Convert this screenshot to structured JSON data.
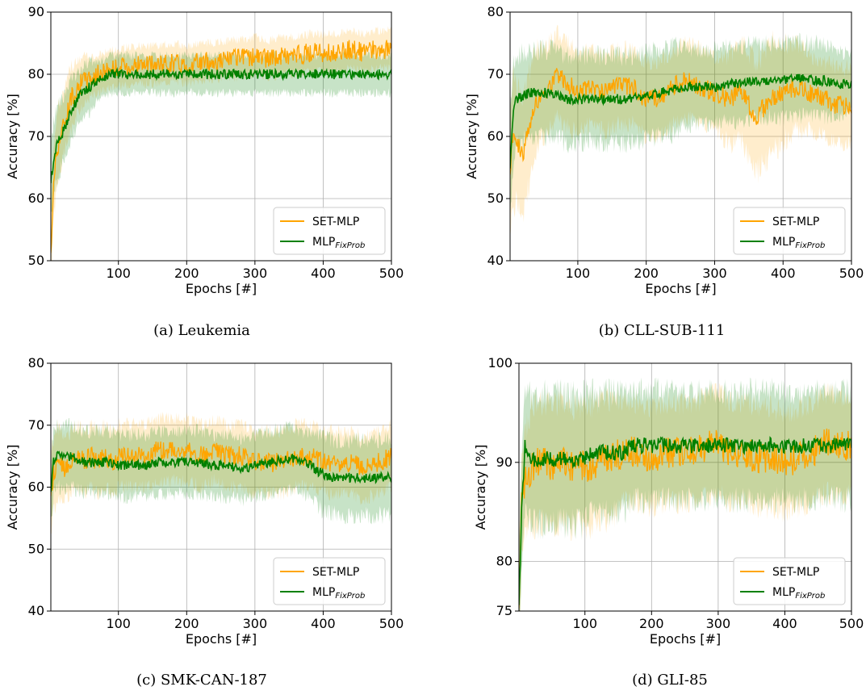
{
  "chart_data": [
    {
      "type": "line",
      "caption": "(a) Leukemia",
      "xlabel": "Epochs [#]",
      "ylabel": "Accuracy [%]",
      "xlim": [
        1,
        500
      ],
      "ylim": [
        50,
        90
      ],
      "xticks": [
        100,
        200,
        300,
        400,
        500
      ],
      "yticks": [
        50,
        60,
        70,
        80,
        90
      ],
      "grid": true,
      "legend_position": "bottom-right",
      "series": [
        {
          "name": "SET-MLP",
          "color": "#ffa500",
          "x": [
            1,
            5,
            10,
            20,
            30,
            40,
            50,
            60,
            70,
            80,
            90,
            100,
            120,
            140,
            160,
            180,
            200,
            220,
            240,
            260,
            280,
            300,
            320,
            340,
            360,
            380,
            400,
            420,
            440,
            460,
            480,
            500
          ],
          "y": [
            50,
            63,
            68,
            72,
            76,
            78,
            79,
            79.5,
            80,
            80.5,
            81,
            81,
            81.5,
            81.5,
            81.5,
            82,
            81.5,
            82,
            82,
            82.5,
            82.5,
            83,
            82.5,
            83,
            83,
            83.5,
            83.5,
            83.5,
            84,
            83.5,
            84,
            84
          ],
          "band": [
            6,
            6,
            6,
            5,
            5,
            4,
            4,
            3,
            3,
            3,
            3,
            3,
            3,
            3,
            3,
            3,
            3,
            3,
            3,
            3,
            3,
            3,
            3,
            3,
            3,
            3,
            3,
            3,
            3,
            3,
            3,
            3
          ]
        },
        {
          "name": "MLP_FixProb",
          "color": "#008000",
          "x": [
            1,
            5,
            10,
            20,
            30,
            40,
            50,
            60,
            70,
            80,
            90,
            100,
            120,
            140,
            160,
            180,
            200,
            220,
            240,
            260,
            280,
            300,
            320,
            340,
            360,
            380,
            400,
            420,
            440,
            460,
            480,
            500
          ],
          "y": [
            63,
            66,
            69,
            71,
            74,
            76,
            77.5,
            78,
            79,
            79.5,
            80,
            80,
            80,
            80,
            80,
            80,
            80,
            80,
            80,
            80,
            80,
            80,
            80,
            80,
            80,
            80,
            80,
            80,
            80,
            80,
            80,
            80
          ],
          "band": [
            6,
            6,
            6,
            5,
            5,
            4,
            4,
            4,
            3,
            3,
            3,
            3,
            3,
            3,
            3,
            3,
            3,
            3,
            3,
            3,
            3,
            3,
            3,
            3,
            3,
            3,
            3,
            3,
            3,
            3,
            3,
            3
          ]
        }
      ]
    },
    {
      "type": "line",
      "caption": "(b) CLL-SUB-111",
      "xlabel": "Epochs [#]",
      "ylabel": "Accuracy [%]",
      "xlim": [
        1,
        500
      ],
      "ylim": [
        40,
        80
      ],
      "xticks": [
        100,
        200,
        300,
        400,
        500
      ],
      "yticks": [
        40,
        50,
        60,
        70,
        80
      ],
      "grid": true,
      "legend_position": "bottom-right",
      "series": [
        {
          "name": "SET-MLP",
          "color": "#ffa500",
          "x": [
            1,
            5,
            10,
            20,
            30,
            40,
            50,
            60,
            70,
            80,
            90,
            100,
            120,
            140,
            160,
            180,
            200,
            220,
            240,
            260,
            280,
            300,
            320,
            340,
            360,
            380,
            400,
            420,
            440,
            460,
            480,
            500
          ],
          "y": [
            55,
            60,
            59,
            57,
            62,
            66,
            67,
            68,
            70,
            69,
            68,
            67,
            68,
            67,
            68,
            68,
            66,
            66,
            68,
            69,
            68,
            67,
            66,
            67,
            63,
            66,
            67,
            68,
            67,
            66,
            65,
            65
          ],
          "band": [
            10,
            10,
            10,
            10,
            9,
            8,
            7,
            7,
            7,
            7,
            7,
            6,
            6,
            6,
            6,
            6,
            6,
            6,
            6,
            6,
            6,
            6,
            7,
            8,
            9,
            9,
            8,
            7,
            6,
            6,
            6,
            6
          ]
        },
        {
          "name": "MLP_FixProb",
          "color": "#008000",
          "x": [
            1,
            5,
            10,
            20,
            30,
            40,
            50,
            60,
            70,
            80,
            90,
            100,
            120,
            140,
            160,
            180,
            200,
            220,
            240,
            260,
            280,
            300,
            320,
            340,
            360,
            380,
            400,
            420,
            440,
            460,
            480,
            500
          ],
          "y": [
            55,
            63,
            66,
            66.5,
            67,
            67,
            67,
            67,
            67,
            66,
            66,
            66,
            66,
            66,
            66,
            66,
            66.5,
            67,
            67.5,
            68,
            68,
            68,
            68.5,
            68.5,
            69,
            69,
            69,
            69.5,
            69,
            69,
            68.5,
            68.5
          ],
          "band": [
            8,
            8,
            7,
            7,
            7,
            7,
            7,
            7,
            7,
            7,
            7,
            7,
            7,
            7,
            7,
            7,
            7,
            7,
            7,
            6,
            6,
            6,
            6,
            6,
            6,
            6,
            6,
            6,
            6,
            6,
            5,
            5
          ]
        }
      ]
    },
    {
      "type": "line",
      "caption": "(c) SMK-CAN-187",
      "xlabel": "Epochs [#]",
      "ylabel": "Accuracy [%]",
      "xlim": [
        1,
        500
      ],
      "ylim": [
        40,
        80
      ],
      "xticks": [
        100,
        200,
        300,
        400,
        500
      ],
      "yticks": [
        40,
        50,
        60,
        70,
        80
      ],
      "grid": true,
      "legend_position": "bottom-right",
      "series": [
        {
          "name": "SET-MLP",
          "color": "#ffa500",
          "x": [
            1,
            5,
            10,
            20,
            30,
            40,
            50,
            60,
            70,
            80,
            90,
            100,
            120,
            140,
            160,
            180,
            200,
            220,
            240,
            260,
            280,
            300,
            320,
            340,
            360,
            380,
            400,
            420,
            440,
            460,
            480,
            500
          ],
          "y": [
            59,
            62,
            64,
            63,
            64,
            65,
            64,
            65,
            64,
            65,
            64,
            65,
            65,
            65,
            66,
            66,
            66,
            65,
            66,
            65,
            65,
            64,
            64,
            64,
            65,
            65,
            64,
            64,
            64,
            63,
            64,
            65
          ],
          "band": [
            6,
            6,
            6,
            5,
            5,
            5,
            5,
            5,
            5,
            5,
            5,
            5,
            5,
            5,
            5,
            5,
            5,
            5,
            5,
            5,
            5,
            5,
            5,
            5,
            5,
            5,
            5,
            5,
            5,
            5,
            5,
            5
          ]
        },
        {
          "name": "MLP_FixProb",
          "color": "#008000",
          "x": [
            1,
            5,
            10,
            20,
            30,
            40,
            50,
            60,
            70,
            80,
            90,
            100,
            120,
            140,
            160,
            180,
            200,
            220,
            240,
            260,
            280,
            300,
            320,
            340,
            360,
            380,
            400,
            420,
            440,
            460,
            480,
            500
          ],
          "y": [
            59,
            64,
            65,
            65,
            65,
            64.5,
            64,
            64,
            64,
            64,
            64,
            63.5,
            63.5,
            63.5,
            64,
            64,
            64,
            64,
            63.5,
            63.5,
            63,
            63.5,
            64,
            64.5,
            64.5,
            63.5,
            62,
            61.5,
            61.5,
            61.5,
            61.5,
            61.5
          ],
          "band": [
            5,
            5,
            5,
            5,
            5,
            5,
            5,
            5,
            5,
            5,
            5,
            5,
            5,
            5,
            5,
            5,
            5,
            5,
            5,
            5,
            5,
            5,
            5,
            5,
            5,
            5,
            6,
            6,
            6,
            6,
            6,
            6
          ]
        }
      ]
    },
    {
      "type": "line",
      "caption": "(d) GLI-85",
      "xlabel": "Epochs [#]",
      "ylabel": "Accuracy [%]",
      "xlim": [
        1,
        500
      ],
      "ylim": [
        75,
        100
      ],
      "xticks": [
        100,
        200,
        300,
        400,
        500
      ],
      "yticks": [
        75,
        80,
        90,
        100
      ],
      "grid": true,
      "legend_position": "bottom-right",
      "series": [
        {
          "name": "SET-MLP",
          "color": "#ffa500",
          "x": [
            1,
            5,
            10,
            20,
            30,
            40,
            50,
            60,
            70,
            80,
            90,
            100,
            120,
            140,
            160,
            180,
            200,
            220,
            240,
            260,
            280,
            300,
            320,
            340,
            360,
            380,
            400,
            420,
            440,
            460,
            480,
            500
          ],
          "y": [
            75,
            86,
            88,
            89.5,
            90,
            90,
            89.5,
            90,
            90,
            89.5,
            90,
            89.5,
            90,
            90.5,
            91,
            91,
            90.5,
            91,
            91,
            91,
            91.5,
            92,
            91,
            91,
            90.5,
            90.5,
            90,
            90.5,
            91,
            92,
            91.5,
            92
          ],
          "band": [
            5,
            5,
            5,
            6,
            6,
            6,
            6,
            6,
            6,
            6,
            6,
            6,
            6,
            6,
            5,
            5,
            5,
            5,
            5,
            5,
            5,
            5,
            5,
            5,
            5,
            5,
            5,
            5,
            5,
            5,
            5,
            5
          ]
        },
        {
          "name": "MLP_FixProb",
          "color": "#008000",
          "x": [
            1,
            5,
            10,
            20,
            30,
            40,
            50,
            60,
            70,
            80,
            90,
            100,
            110,
            120,
            140,
            160,
            170,
            200,
            220,
            240,
            260,
            280,
            300,
            320,
            340,
            360,
            380,
            400,
            420,
            440,
            460,
            480,
            500
          ],
          "y": [
            75,
            85,
            91.5,
            90.3,
            90.3,
            90.3,
            90.3,
            90.3,
            90.3,
            90.3,
            90.3,
            90.3,
            91,
            91,
            91,
            91,
            91.7,
            91.7,
            91.7,
            91.7,
            91.7,
            91.7,
            91.7,
            91.7,
            91.7,
            91.7,
            91.7,
            91.7,
            91.7,
            91.7,
            91.7,
            91.7,
            91.7
          ],
          "band": [
            6,
            6,
            6,
            6.5,
            6.5,
            6.5,
            6.5,
            6.5,
            6.5,
            6.5,
            6.5,
            6.5,
            6,
            6,
            6,
            6,
            5.5,
            5.5,
            5.5,
            5.5,
            5.5,
            5.5,
            5.5,
            5.5,
            5.5,
            5.5,
            5.5,
            5.5,
            5.5,
            5.5,
            5.5,
            5.5,
            5.5
          ]
        }
      ]
    }
  ],
  "legend_labels": {
    "set_mlp": "SET-MLP",
    "mlp_base": "MLP",
    "mlp_sub": "FixProb"
  }
}
